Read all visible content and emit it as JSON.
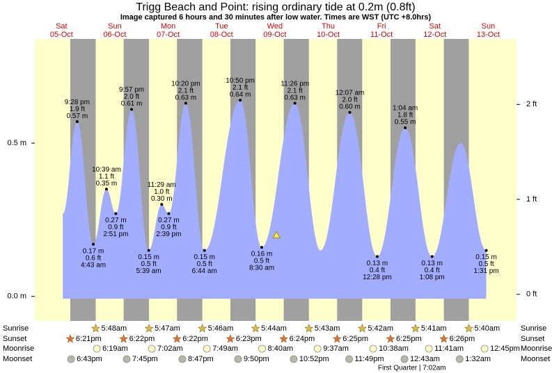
{
  "header": {
    "title": "Trigg Beach and Point: rising  ordinary tide at 0.2m (0.8ft)",
    "subtitle": "Image captured 6 hours and 30 minutes after low water. Times are WST (UTC +8.0hrs)"
  },
  "chart_data": {
    "type": "area",
    "color": "#a3adff",
    "day_color": "#ffffcc",
    "night_color": "#a0a0a0",
    "xlim": [
      0.1,
      9.13
    ],
    "ylim": [
      -0.08,
      0.84
    ],
    "yticks": [
      {
        "value": 0,
        "label": "0.0 m"
      },
      {
        "value": 0.5,
        "label": "0.5 m"
      }
    ],
    "y2lim": [
      -0.28,
      2.69
    ],
    "y2ticks": [
      {
        "value": 0,
        "label": "0 ft"
      },
      {
        "value": 1,
        "label": "1 ft"
      },
      {
        "value": 2,
        "label": "2 ft"
      }
    ],
    "current": {
      "x": 4.63,
      "m": 0.2
    },
    "row_labels": {
      "sunrise": "Sunrise",
      "sunset": "Sunset",
      "moonrise": "Moonrise",
      "moonset": "Moonset"
    },
    "moon_phase": "First Quarter | 7:02am",
    "days": [
      {
        "weekday": "Sat",
        "date": "05-Oct",
        "sunset": "6:21pm",
        "moonset": "6:43pm",
        "tides": [
          {
            "hour": 15,
            "m": 0.27
          },
          {
            "time": "9:28 pm",
            "m": 0.57,
            "m_label": "0.57 m",
            "ft_label": "1.9 ft"
          }
        ]
      },
      {
        "weekday": "Sun",
        "date": "06-Oct",
        "sunrise": "5:48am",
        "sunset": "6:22pm",
        "moonrise": "6:19am",
        "moonset": "7:45pm",
        "tides": [
          {
            "time": "4:43 am",
            "m": 0.17,
            "m_label": "0.17 m",
            "ft_label": "0.6 ft"
          },
          {
            "time": "10:39 am",
            "m": 0.35,
            "m_label": "0.35 m",
            "ft_label": "1.1 ft"
          },
          {
            "time": "2:51 pm",
            "m": 0.27,
            "m_label": "0.27 m",
            "ft_label": "0.9 ft"
          },
          {
            "time": "9:57 pm",
            "m": 0.61,
            "m_label": "0.61 m",
            "ft_label": "2.0 ft"
          }
        ]
      },
      {
        "weekday": "Mon",
        "date": "07-Oct",
        "sunrise": "5:47am",
        "sunset": "6:22pm",
        "moonrise": "7:02am",
        "moonset": "8:47pm",
        "tides": [
          {
            "time": "5:39 am",
            "m": 0.15,
            "m_label": "0.15 m",
            "ft_label": "0.5 ft"
          },
          {
            "time": "11:29 am",
            "m": 0.3,
            "m_label": "0.30 m",
            "ft_label": "1.0 ft"
          },
          {
            "time": "2:39 pm",
            "m": 0.27,
            "m_label": "0.27 m",
            "ft_label": "0.9 ft"
          },
          {
            "time": "10:20 pm",
            "m": 0.63,
            "m_label": "0.63 m",
            "ft_label": "2.1 ft"
          }
        ]
      },
      {
        "weekday": "Tue",
        "date": "08-Oct",
        "sunrise": "5:46am",
        "sunset": "6:23pm",
        "moonrise": "7:49am",
        "moonset": "9:50pm",
        "tides": [
          {
            "time": "6:44 am",
            "m": 0.15,
            "m_label": "0.15 m",
            "ft_label": "0.5 ft"
          },
          {
            "time": "10:50 pm",
            "m": 0.64,
            "m_label": "0.64 m",
            "ft_label": "2.1 ft"
          }
        ]
      },
      {
        "weekday": "Wed",
        "date": "09-Oct",
        "sunrise": "5:44am",
        "sunset": "6:24pm",
        "moonrise": "8:40am",
        "moonset": "10:52pm",
        "tides": [
          {
            "time": "8:30 am",
            "m": 0.16,
            "m_label": "0.16 m",
            "ft_label": "0.5 ft"
          },
          {
            "time": "11:26 pm",
            "m": 0.63,
            "m_label": "0.63 m",
            "ft_label": "2.1 ft"
          }
        ]
      },
      {
        "weekday": "Thu",
        "date": "10-Oct",
        "sunrise": "5:43am",
        "sunset": "6:25pm",
        "moonrise": "9:37am",
        "moonset": "11:49pm",
        "tides": [
          {
            "hour": 11,
            "m": 0.15
          }
        ]
      },
      {
        "weekday": "Fri",
        "date": "11-Oct",
        "sunrise": "5:42am",
        "sunset": "6:25pm",
        "moonrise": "10:38am",
        "tides": [
          {
            "time": "12:07 am",
            "m": 0.6,
            "m_label": "0.60 m",
            "ft_label": "2.0 ft"
          },
          {
            "time": "12:28 pm",
            "m": 0.13,
            "m_label": "0.13 m",
            "ft_label": "0.4 ft"
          }
        ]
      },
      {
        "weekday": "Sat",
        "date": "12-Oct",
        "sunrise": "5:41am",
        "sunset": "6:26pm",
        "moonrise": "11:41am",
        "moonset": "12:43am",
        "tides": [
          {
            "time": "1:04 am",
            "m": 0.55,
            "m_label": "0.55 m",
            "ft_label": "1.8 ft"
          },
          {
            "time": "1:08 pm",
            "m": 0.13,
            "m_label": "0.13 m",
            "ft_label": "0.4 ft"
          }
        ]
      },
      {
        "weekday": "Sun",
        "date": "13-Oct",
        "sunrise": "5:40am",
        "moonrise": "12:45pm",
        "moonset": "1:32am",
        "tides": [
          {
            "hour": 2,
            "m": 0.5
          },
          {
            "time": "1:31 pm",
            "m": 0.15,
            "m_label": "0.15 m",
            "ft_label": "0.5 ft"
          }
        ]
      }
    ]
  }
}
